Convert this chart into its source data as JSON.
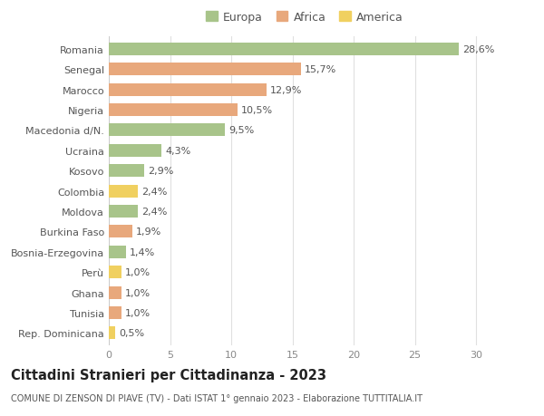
{
  "countries": [
    "Romania",
    "Senegal",
    "Marocco",
    "Nigeria",
    "Macedonia d/N.",
    "Ucraina",
    "Kosovo",
    "Colombia",
    "Moldova",
    "Burkina Faso",
    "Bosnia-Erzegovina",
    "Perù",
    "Ghana",
    "Tunisia",
    "Rep. Dominicana"
  ],
  "values": [
    28.6,
    15.7,
    12.9,
    10.5,
    9.5,
    4.3,
    2.9,
    2.4,
    2.4,
    1.9,
    1.4,
    1.0,
    1.0,
    1.0,
    0.5
  ],
  "labels": [
    "28,6%",
    "15,7%",
    "12,9%",
    "10,5%",
    "9,5%",
    "4,3%",
    "2,9%",
    "2,4%",
    "2,4%",
    "1,9%",
    "1,4%",
    "1,0%",
    "1,0%",
    "1,0%",
    "0,5%"
  ],
  "colors": [
    "#a8c48a",
    "#e8a87c",
    "#e8a87c",
    "#e8a87c",
    "#a8c48a",
    "#a8c48a",
    "#a8c48a",
    "#f0d060",
    "#a8c48a",
    "#e8a87c",
    "#a8c48a",
    "#f0d060",
    "#e8a87c",
    "#e8a87c",
    "#f0d060"
  ],
  "legend_labels": [
    "Europa",
    "Africa",
    "America"
  ],
  "legend_colors": [
    "#a8c48a",
    "#e8a87c",
    "#f0d060"
  ],
  "title": "Cittadini Stranieri per Cittadinanza - 2023",
  "subtitle": "COMUNE DI ZENSON DI PIAVE (TV) - Dati ISTAT 1° gennaio 2023 - Elaborazione TUTTITALIA.IT",
  "xlim": [
    0,
    32
  ],
  "xticks": [
    0,
    5,
    10,
    15,
    20,
    25,
    30
  ],
  "bg_color": "#ffffff",
  "grid_color": "#e0e0e0",
  "bar_height": 0.62,
  "label_fontsize": 8,
  "tick_fontsize": 8,
  "title_fontsize": 10.5,
  "subtitle_fontsize": 7
}
